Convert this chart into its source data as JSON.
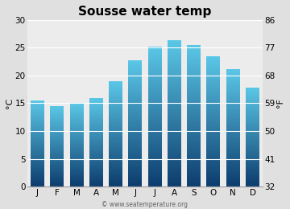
{
  "title": "Sousse water temp",
  "months": [
    "J",
    "F",
    "M",
    "A",
    "M",
    "J",
    "J",
    "A",
    "S",
    "O",
    "N",
    "D"
  ],
  "values_c": [
    15.5,
    14.5,
    14.9,
    16.0,
    18.9,
    22.7,
    25.2,
    26.3,
    25.5,
    23.4,
    21.1,
    17.8
  ],
  "ylim_c": [
    0,
    30
  ],
  "yticks_c": [
    0,
    5,
    10,
    15,
    20,
    25,
    30
  ],
  "yticks_f": [
    32,
    41,
    50,
    59,
    68,
    77,
    86
  ],
  "ylabel_left": "°C",
  "ylabel_right": "°F",
  "bar_color_top": "#5bc8e8",
  "bar_color_bottom": "#0d3d6e",
  "fig_bg_color": "#e0e0e0",
  "plot_bg_color": "#ececec",
  "grid_color": "#ffffff",
  "watermark": "© www.seatemperature.org",
  "title_fontsize": 11,
  "tick_fontsize": 7.5,
  "label_fontsize": 8,
  "watermark_fontsize": 5.5
}
